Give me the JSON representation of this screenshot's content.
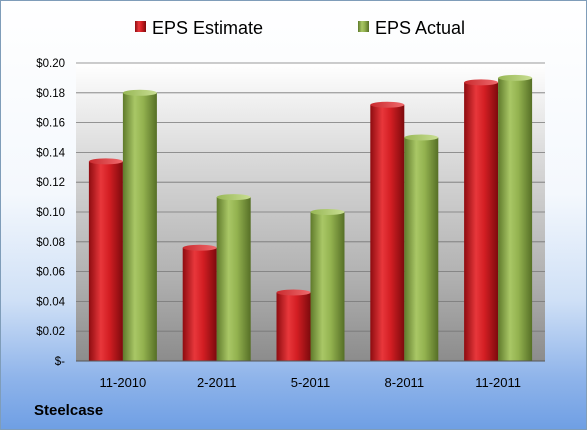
{
  "company": "Steelcase",
  "chart_data": {
    "type": "bar",
    "categories": [
      "11-2010",
      "2-2011",
      "5-2011",
      "8-2011",
      "11-2011"
    ],
    "series": [
      {
        "name": "EPS Estimate",
        "values": [
          0.134,
          0.076,
          0.046,
          0.172,
          0.187
        ],
        "color": "#c8161b"
      },
      {
        "name": "EPS Actual",
        "values": [
          0.18,
          0.11,
          0.1,
          0.15,
          0.19
        ],
        "color": "#8fb04a"
      }
    ],
    "y_ticks": [
      "$-",
      "$0.02",
      "$0.04",
      "$0.06",
      "$0.08",
      "$0.10",
      "$0.12",
      "$0.14",
      "$0.16",
      "$0.18",
      "$0.20"
    ],
    "ylim": [
      0,
      0.2
    ],
    "grid": true,
    "legend": "top"
  }
}
